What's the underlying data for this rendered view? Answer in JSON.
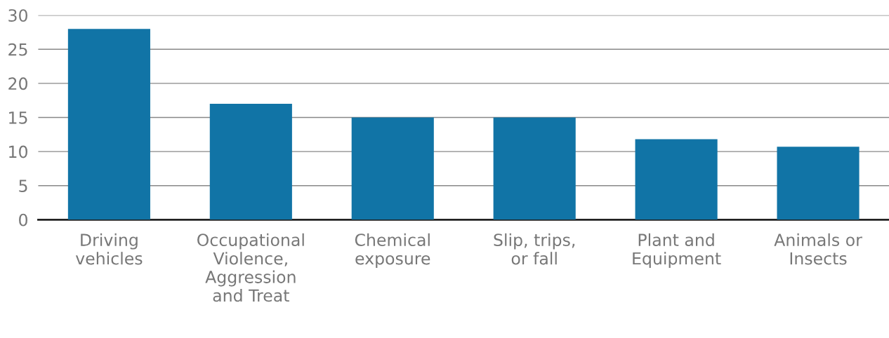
{
  "chart_data": {
    "type": "bar",
    "categories": [
      "Driving\nvehicles",
      "Occupational\nViolence,\nAggression\nand Treat",
      "Chemical\nexposure",
      "Slip, trips,\nor fall",
      "Plant and\nEquipment",
      "Animals or\nInsects"
    ],
    "values": [
      28,
      17,
      15,
      15,
      11.8,
      10.7
    ],
    "color": "#1174a6",
    "ylim": [
      0,
      30
    ],
    "yticks": [
      0,
      5,
      10,
      15,
      20,
      25,
      30
    ],
    "grid": "y"
  }
}
